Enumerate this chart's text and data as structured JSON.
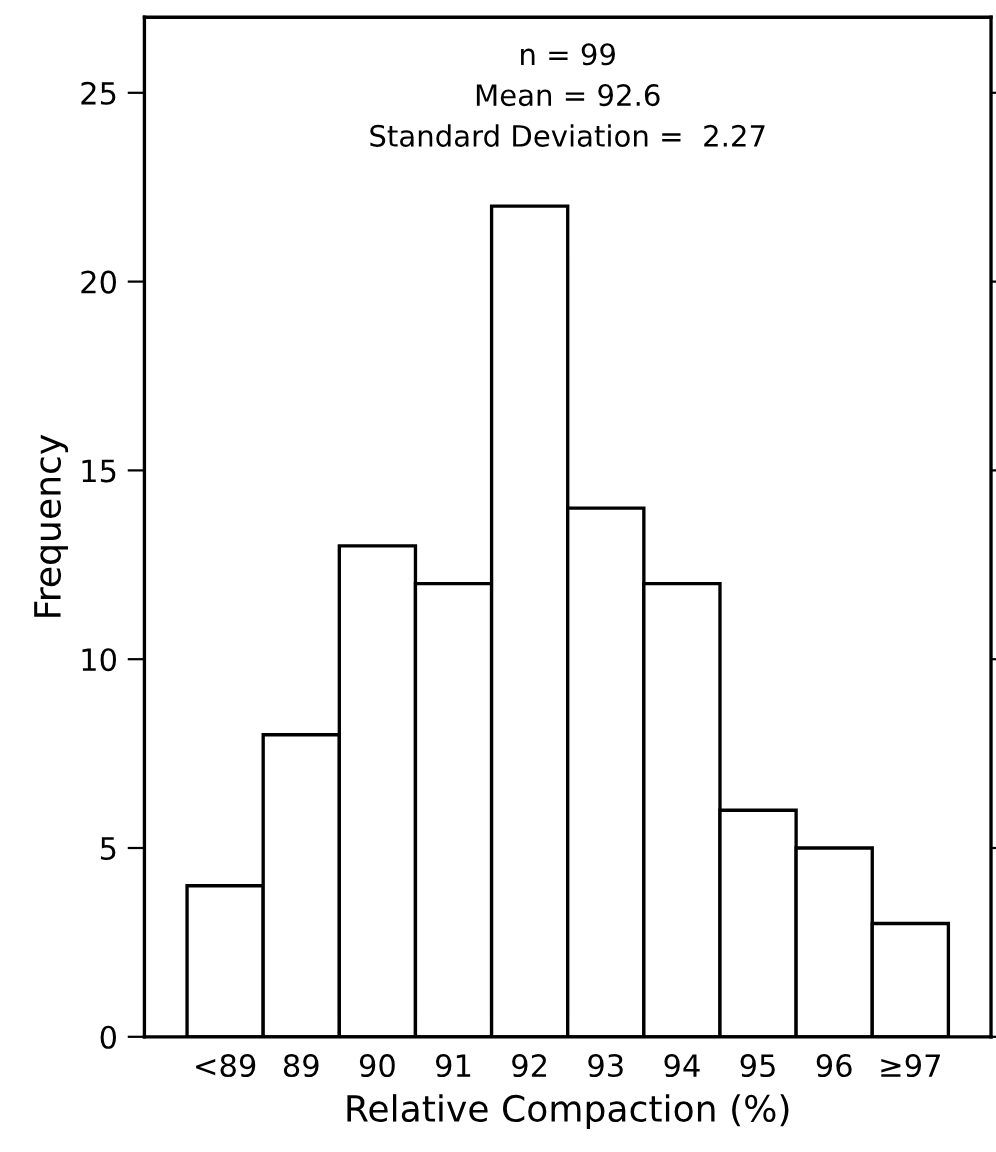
{
  "chart_data": {
    "type": "bar",
    "xlabel": "Relative Compaction (%)",
    "ylabel": "Frequency",
    "categories": [
      "<89",
      "89",
      "90",
      "91",
      "92",
      "93",
      "94",
      "95",
      "96",
      "≥97"
    ],
    "values": [
      4,
      8,
      13,
      12,
      22,
      14,
      12,
      6,
      5,
      3
    ],
    "color": "#ffffff",
    "ylim": [
      0,
      27
    ],
    "yticks": [
      0,
      5,
      10,
      15,
      20,
      25
    ],
    "grid": false,
    "annotations": [
      "n = 99",
      "Mean = 92.6",
      "Standard Deviation =  2.27"
    ]
  }
}
